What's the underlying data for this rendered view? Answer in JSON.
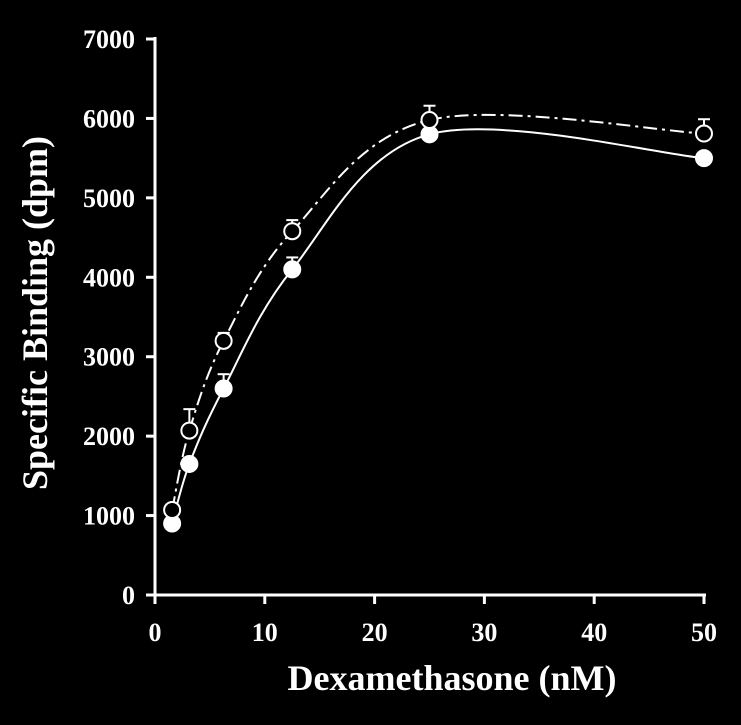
{
  "chart_data": {
    "type": "line",
    "title": "",
    "xlabel": "Dexamethasone (nM)",
    "ylabel": "Specific Binding (dpm)",
    "xlim": [
      0,
      50
    ],
    "ylim": [
      0,
      7000
    ],
    "x_ticks": [
      "0",
      "10",
      "20",
      "30",
      "40",
      "50"
    ],
    "y_ticks": [
      "0",
      "1000",
      "2000",
      "3000",
      "4000",
      "5000",
      "6000",
      "7000"
    ],
    "grid": false,
    "legend": "none",
    "colors": {
      "background": "#000000",
      "foreground": "#ffffff"
    },
    "series": [
      {
        "marker": "filled-circle",
        "line": "solid",
        "x": [
          1.56,
          3.13,
          6.25,
          12.5,
          25,
          50
        ],
        "y": [
          900,
          1650,
          2600,
          4100,
          5800,
          5500
        ],
        "error": [
          0,
          70,
          180,
          150,
          0,
          0
        ]
      },
      {
        "marker": "open-circle",
        "line": "dash-dot",
        "x": [
          1.56,
          3.13,
          6.25,
          12.5,
          25,
          50
        ],
        "y": [
          1070,
          2070,
          3200,
          4580,
          5980,
          5810
        ],
        "error": [
          0,
          270,
          100,
          140,
          180,
          180
        ]
      }
    ]
  }
}
